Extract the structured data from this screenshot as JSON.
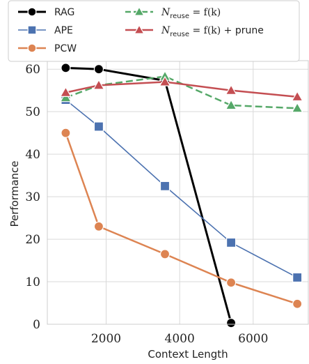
{
  "chart_data": {
    "type": "line",
    "title": "",
    "xlabel": "Context Length",
    "ylabel": "Performance",
    "xlim": [
      400,
      7500
    ],
    "ylim": [
      0,
      62
    ],
    "xticks": [
      2000,
      4000,
      6000
    ],
    "yticks": [
      0,
      10,
      20,
      30,
      40,
      50,
      60
    ],
    "grid": true,
    "legend": "top",
    "series": [
      {
        "name": "RAG",
        "color": "#000000",
        "marker": "circle",
        "dash": "solid",
        "width": 3,
        "x": [
          900,
          1800,
          3600,
          5400
        ],
        "y": [
          60.3,
          60.0,
          57.3,
          0.3
        ]
      },
      {
        "name": "APE",
        "color": "#4c72b0",
        "marker": "square",
        "dash": "solid",
        "width": 1.6,
        "x": [
          900,
          1800,
          3600,
          5400,
          7200
        ],
        "y": [
          52.8,
          46.5,
          32.5,
          19.2,
          11.0
        ]
      },
      {
        "name": "PCW",
        "color": "#dd8452",
        "marker": "circle",
        "dash": "solid",
        "width": 2.5,
        "x": [
          900,
          1800,
          3600,
          5400,
          7200
        ],
        "y": [
          45.0,
          23.0,
          16.5,
          9.8,
          4.8
        ]
      },
      {
        "name": "N_reuse = f(k)",
        "legend_main": "N",
        "legend_sub": "reuse",
        "legend_rest": " = f(k)",
        "legend_suffix": "",
        "color": "#55a868",
        "marker": "triangle",
        "dash": "dashed",
        "width": 2.5,
        "x": [
          900,
          1800,
          3600,
          5400,
          7200
        ],
        "y": [
          53.3,
          56.2,
          58.3,
          51.5,
          50.8
        ]
      },
      {
        "name": "N_reuse = f(k) + prune",
        "legend_main": "N",
        "legend_sub": "reuse",
        "legend_rest": " = f(k) +",
        "legend_suffix": " prune",
        "color": "#c44e52",
        "marker": "triangle",
        "dash": "solid",
        "width": 2.5,
        "x": [
          900,
          1800,
          3600,
          5400,
          7200
        ],
        "y": [
          54.5,
          56.2,
          57.0,
          55.0,
          53.5
        ]
      }
    ]
  }
}
